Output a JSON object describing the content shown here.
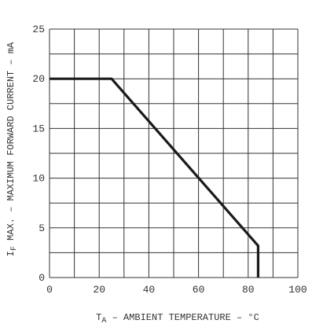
{
  "chart_data": {
    "type": "line",
    "title": "",
    "xlabel": {
      "prefix": "T",
      "subscript": "A",
      "text": " – AMBIENT TEMPERATURE – °C"
    },
    "ylabel": {
      "prefix": "I",
      "subscript": "F",
      "text": " MAX. – MAXIMUM FORWARD CURRENT – mA"
    },
    "xlim": [
      0,
      100
    ],
    "ylim": [
      0,
      25
    ],
    "x_tick_labels": [
      "0",
      "20",
      "40",
      "60",
      "80",
      "100"
    ],
    "x_tick_values": [
      0,
      20,
      40,
      60,
      80,
      100
    ],
    "y_tick_labels": [
      "0",
      "5",
      "10",
      "15",
      "20",
      "25"
    ],
    "y_tick_values": [
      0,
      5,
      10,
      15,
      20,
      25
    ],
    "x_grid_values": [
      0,
      10,
      20,
      30,
      40,
      50,
      60,
      70,
      80,
      90,
      100
    ],
    "y_grid_values": [
      0,
      2.5,
      5,
      7.5,
      10,
      12.5,
      15,
      17.5,
      20,
      22.5,
      25
    ],
    "grid": true,
    "series": [
      {
        "x": [
          0,
          25,
          84,
          84
        ],
        "y": [
          20,
          20,
          3.2,
          0
        ]
      }
    ],
    "colors": {
      "line": "#1a1a1a",
      "grid": "#333333",
      "text": "#333333"
    }
  }
}
